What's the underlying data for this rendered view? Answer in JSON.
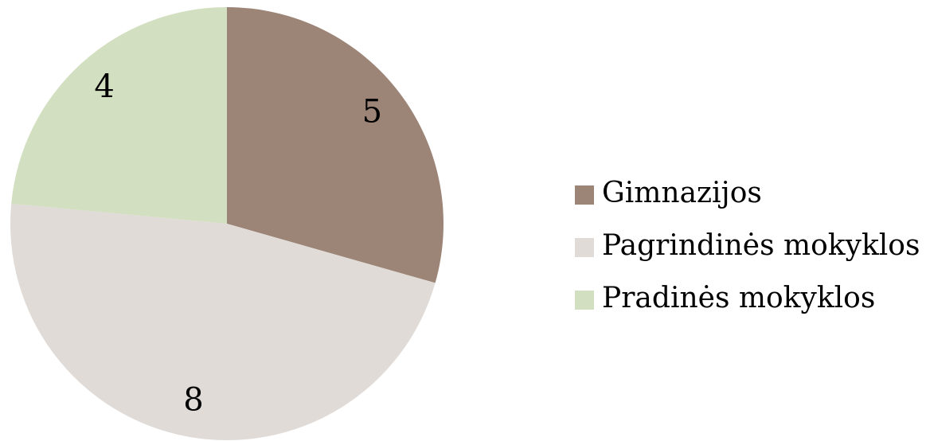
{
  "chart_data": {
    "type": "pie",
    "categories": [
      "Gimnazijos",
      "Pagrindinės mokyklos",
      "Pradinės mokyklos"
    ],
    "values": [
      5,
      8,
      4
    ],
    "colors": [
      "#9c8577",
      "#e0dbd7",
      "#d3dfc1"
    ],
    "legend": "right"
  }
}
